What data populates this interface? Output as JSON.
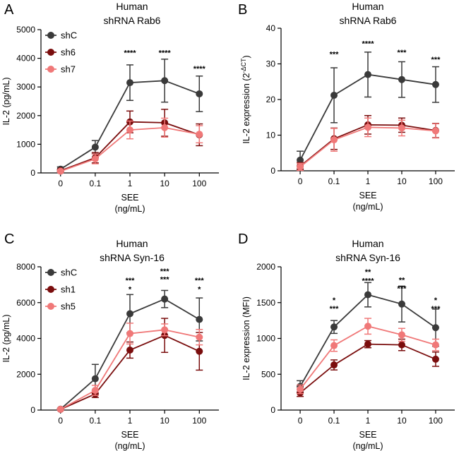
{
  "chart_data": [
    {
      "type": "line",
      "panel": "A",
      "title": [
        "Human",
        "shRNA Rab6"
      ],
      "xlabel": [
        "SEE",
        "(ng/mL)"
      ],
      "ylabel": "IL-2 (pg/mL)",
      "ylim": [
        0,
        5000
      ],
      "yticks": [
        0,
        1000,
        2000,
        3000,
        4000,
        5000
      ],
      "categories": [
        "0",
        "0.1",
        "1",
        "10",
        "100"
      ],
      "legend": "top-left",
      "series": [
        {
          "name": "shC",
          "color": "#3a3a3a",
          "values": [
            130,
            900,
            3150,
            3220,
            2760
          ],
          "errors": [
            80,
            230,
            620,
            750,
            620
          ]
        },
        {
          "name": "sh6",
          "color": "#7a0d0d",
          "values": [
            80,
            530,
            1780,
            1750,
            1330
          ],
          "errors": [
            50,
            180,
            380,
            470,
            380
          ]
        },
        {
          "name": "sh7",
          "color": "#f07878",
          "values": [
            60,
            490,
            1500,
            1580,
            1350
          ],
          "errors": [
            40,
            170,
            310,
            330,
            300
          ]
        }
      ],
      "annotations": [
        {
          "x": "1",
          "y": 4100,
          "text": "****"
        },
        {
          "x": "10",
          "y": 4100,
          "text": "****"
        },
        {
          "x": "100",
          "y": 3550,
          "text": "****"
        }
      ]
    },
    {
      "type": "line",
      "panel": "B",
      "title": [
        "Human",
        "shRNA Rab6"
      ],
      "xlabel": [
        "SEE",
        "(ng/mL)"
      ],
      "ylabel": "IL-2 expression (2",
      "ylabel_sup": "-ΔCT",
      "ylabel_close": ")",
      "ylim": [
        0,
        40
      ],
      "yticks": [
        0,
        10,
        20,
        30,
        40
      ],
      "categories": [
        "0",
        "0.1",
        "1",
        "10",
        "100"
      ],
      "legend": "none",
      "series": [
        {
          "name": "shC",
          "color": "#3a3a3a",
          "values": [
            3,
            21.2,
            27,
            25.6,
            24.2
          ],
          "errors": [
            2.5,
            7.7,
            6.3,
            5,
            5
          ]
        },
        {
          "name": "sh6",
          "color": "#7a0d0d",
          "values": [
            1.3,
            9,
            12.9,
            12.8,
            11.3
          ],
          "errors": [
            1,
            3,
            2.6,
            2,
            2
          ]
        },
        {
          "name": "sh7",
          "color": "#f07878",
          "values": [
            1.1,
            8.7,
            12.2,
            12,
            11.2
          ],
          "errors": [
            1,
            3.2,
            2.6,
            2.2,
            2
          ]
        }
      ],
      "annotations": [
        {
          "x": "0.1",
          "y": 32,
          "text": "***"
        },
        {
          "x": "1",
          "y": 35,
          "text": "****"
        },
        {
          "x": "10",
          "y": 32.5,
          "text": "***"
        },
        {
          "x": "100",
          "y": 30.5,
          "text": "***"
        }
      ]
    },
    {
      "type": "line",
      "panel": "C",
      "title": [
        "Human",
        "shRNA Syn-16"
      ],
      "xlabel": [
        "SEE",
        "(ng/mL)"
      ],
      "ylabel": "IL-2 (pg/mL)",
      "ylim": [
        0,
        8000
      ],
      "yticks": [
        0,
        2000,
        4000,
        6000,
        8000
      ],
      "categories": [
        "0",
        "0.1",
        "1",
        "10",
        "100"
      ],
      "legend": "top-left",
      "series": [
        {
          "name": "shC",
          "color": "#3a3a3a",
          "values": [
            50,
            1750,
            5380,
            6200,
            5060
          ],
          "errors": [
            40,
            800,
            1070,
            480,
            1200
          ]
        },
        {
          "name": "sh1",
          "color": "#7a0d0d",
          "values": [
            40,
            900,
            3350,
            4170,
            3280
          ],
          "errors": [
            30,
            200,
            450,
            950,
            1050
          ]
        },
        {
          "name": "sh5",
          "color": "#f07878",
          "values": [
            45,
            1100,
            4270,
            4480,
            4070
          ],
          "errors": [
            30,
            280,
            580,
            330,
            430
          ]
        }
      ],
      "annotations": [
        {
          "x": "1",
          "y": 7100,
          "text": "***"
        },
        {
          "x": "1",
          "y": 6600,
          "text": "*"
        },
        {
          "x": "10",
          "y": 7600,
          "text": "***"
        },
        {
          "x": "10",
          "y": 7150,
          "text": "***"
        },
        {
          "x": "100",
          "y": 7100,
          "text": "***"
        },
        {
          "x": "100",
          "y": 6600,
          "text": "*"
        }
      ]
    },
    {
      "type": "line",
      "panel": "D",
      "title": [
        "Human",
        "shRNA Syn-16"
      ],
      "xlabel": [
        "SEE",
        "(ng/mL)"
      ],
      "ylabel": "IL-2 expression (MFI)",
      "ylim": [
        0,
        2000
      ],
      "yticks": [
        0,
        500,
        1000,
        1500,
        2000
      ],
      "categories": [
        "0",
        "0.1",
        "1",
        "10",
        "100"
      ],
      "legend": "none",
      "series": [
        {
          "name": "shC",
          "color": "#3a3a3a",
          "values": [
            330,
            1160,
            1610,
            1480,
            1150
          ],
          "errors": [
            80,
            90,
            170,
            250,
            260
          ]
        },
        {
          "name": "sh1",
          "color": "#7a0d0d",
          "values": [
            240,
            630,
            920,
            910,
            710
          ],
          "errors": [
            50,
            70,
            50,
            80,
            100
          ]
        },
        {
          "name": "sh5",
          "color": "#f07878",
          "values": [
            290,
            900,
            1170,
            1050,
            910
          ],
          "errors": [
            60,
            80,
            110,
            90,
            80
          ]
        }
      ],
      "annotations": [
        {
          "x": "0.1",
          "y": 1500,
          "text": "*"
        },
        {
          "x": "0.1",
          "y": 1380,
          "text": "***"
        },
        {
          "x": "1",
          "y": 1890,
          "text": "**"
        },
        {
          "x": "1",
          "y": 1770,
          "text": "****"
        },
        {
          "x": "10",
          "y": 1780,
          "text": "**"
        },
        {
          "x": "10",
          "y": 1660,
          "text": "***"
        },
        {
          "x": "100",
          "y": 1500,
          "text": "*"
        },
        {
          "x": "100",
          "y": 1380,
          "text": "***"
        }
      ]
    }
  ]
}
